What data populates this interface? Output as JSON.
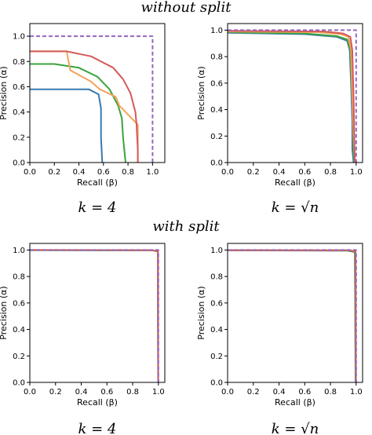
{
  "sections": [
    {
      "title": "without split"
    },
    {
      "title": "with split"
    }
  ],
  "colors": {
    "blue": "#3a78b0",
    "green": "#3ba33b",
    "orange": "#f3a35a",
    "red": "#d45a5a",
    "purple_dashed": "#9467bd"
  },
  "chart_data": [
    {
      "type": "line",
      "caption": "k = 4",
      "xlabel": "Recall (β)",
      "ylabel": "Precision (α)",
      "xlim": [
        0,
        1.1
      ],
      "ylim": [
        0,
        1.1
      ],
      "xticks": [
        "0.0",
        "0.2",
        "0.4",
        "0.6",
        "0.8",
        "1.0"
      ],
      "yticks": [
        "0.0",
        "0.2",
        "0.4",
        "0.6",
        "0.8",
        "1.0"
      ],
      "series": [
        {
          "color": "#3a78b0",
          "dashed": false,
          "x": [
            0,
            0.48,
            0.56,
            0.58,
            0.58,
            0.59
          ],
          "y": [
            0.58,
            0.58,
            0.54,
            0.43,
            0.2,
            0
          ]
        },
        {
          "color": "#3ba33b",
          "dashed": false,
          "x": [
            0,
            0.2,
            0.4,
            0.55,
            0.65,
            0.72,
            0.75,
            0.76,
            0.77,
            0.78
          ],
          "y": [
            0.78,
            0.78,
            0.75,
            0.68,
            0.58,
            0.45,
            0.35,
            0.2,
            0.1,
            0
          ]
        },
        {
          "color": "#f3a35a",
          "dashed": false,
          "x": [
            0,
            0.3,
            0.33,
            0.5,
            0.57,
            0.7,
            0.73,
            0.88,
            0.88
          ],
          "y": [
            0.88,
            0.88,
            0.73,
            0.64,
            0.58,
            0.52,
            0.45,
            0.3,
            0
          ]
        },
        {
          "color": "#d45a5a",
          "dashed": false,
          "x": [
            0,
            0.3,
            0.5,
            0.68,
            0.76,
            0.82,
            0.86,
            0.87,
            0.88,
            0.88
          ],
          "y": [
            0.88,
            0.88,
            0.84,
            0.75,
            0.66,
            0.55,
            0.4,
            0.3,
            0.1,
            0
          ]
        },
        {
          "color": "#9467bd",
          "dashed": true,
          "x": [
            0,
            1,
            1
          ],
          "y": [
            1,
            1,
            0
          ]
        }
      ]
    },
    {
      "type": "line",
      "caption": "k = √n",
      "xlabel": "Recall (β)",
      "ylabel": "Precision (α)",
      "xlim": [
        0,
        1.05
      ],
      "ylim": [
        0,
        1.05
      ],
      "xticks": [
        "0.0",
        "0.2",
        "0.4",
        "0.6",
        "0.8",
        "1.0"
      ],
      "yticks": [
        "0.0",
        "0.2",
        "0.4",
        "0.6",
        "0.8",
        "1.0"
      ],
      "series": [
        {
          "color": "#3a78b0",
          "dashed": false,
          "x": [
            0,
            0.6,
            0.85,
            0.93,
            0.95,
            0.96,
            0.97,
            0.97,
            0.98
          ],
          "y": [
            0.98,
            0.97,
            0.95,
            0.92,
            0.85,
            0.6,
            0.3,
            0.1,
            0
          ]
        },
        {
          "color": "#3ba33b",
          "dashed": false,
          "x": [
            0,
            0.6,
            0.85,
            0.93,
            0.955,
            0.965,
            0.975,
            0.98,
            0.985
          ],
          "y": [
            0.985,
            0.975,
            0.955,
            0.93,
            0.85,
            0.6,
            0.3,
            0.1,
            0
          ]
        },
        {
          "color": "#f3a35a",
          "dashed": false,
          "x": [
            0,
            0.7,
            0.88,
            0.94,
            0.96,
            0.97,
            0.98,
            0.99
          ],
          "y": [
            0.99,
            0.985,
            0.97,
            0.95,
            0.85,
            0.5,
            0.2,
            0
          ]
        },
        {
          "color": "#d45a5a",
          "dashed": false,
          "x": [
            0,
            0.75,
            0.9,
            0.955,
            0.97,
            0.98,
            0.985,
            0.99
          ],
          "y": [
            0.995,
            0.99,
            0.975,
            0.95,
            0.85,
            0.5,
            0.2,
            0
          ]
        },
        {
          "color": "#9467bd",
          "dashed": true,
          "x": [
            0,
            1,
            1
          ],
          "y": [
            1,
            1,
            0
          ]
        }
      ]
    },
    {
      "type": "line",
      "caption": "k = 4",
      "xlabel": "Recall (β)",
      "ylabel": "Precision (α)",
      "xlim": [
        0,
        1.05
      ],
      "ylim": [
        0,
        1.05
      ],
      "xticks": [
        "0.0",
        "0.2",
        "0.4",
        "0.6",
        "0.8",
        "1.0"
      ],
      "yticks": [
        "0.0",
        "0.2",
        "0.4",
        "0.6",
        "0.8",
        "1.0"
      ],
      "series": [
        {
          "color": "#3a78b0",
          "dashed": false,
          "x": [
            0,
            0.95,
            0.995,
            0.998
          ],
          "y": [
            0.999,
            0.998,
            0.99,
            0
          ]
        },
        {
          "color": "#3ba33b",
          "dashed": false,
          "x": [
            0,
            0.95,
            0.995,
            0.998
          ],
          "y": [
            0.999,
            0.998,
            0.99,
            0
          ]
        },
        {
          "color": "#f3a35a",
          "dashed": false,
          "x": [
            0,
            0.95,
            0.996,
            0.999
          ],
          "y": [
            1,
            0.999,
            0.99,
            0
          ]
        },
        {
          "color": "#d45a5a",
          "dashed": false,
          "x": [
            0,
            0.95,
            0.996,
            0.999
          ],
          "y": [
            1,
            0.999,
            0.99,
            0
          ]
        },
        {
          "color": "#9467bd",
          "dashed": true,
          "x": [
            0,
            1,
            1
          ],
          "y": [
            1,
            1,
            0
          ]
        }
      ]
    },
    {
      "type": "line",
      "caption": "k = √n",
      "xlabel": "Recall (β)",
      "ylabel": "Precision (α)",
      "xlim": [
        0,
        1.05
      ],
      "ylim": [
        0,
        1.05
      ],
      "xticks": [
        "0.0",
        "0.2",
        "0.4",
        "0.6",
        "0.8",
        "1.0"
      ],
      "yticks": [
        "0.0",
        "0.2",
        "0.4",
        "0.6",
        "0.8",
        "1.0"
      ],
      "series": [
        {
          "color": "#3a78b0",
          "dashed": false,
          "x": [
            0,
            0.93,
            0.99,
            0.995
          ],
          "y": [
            0.997,
            0.995,
            0.985,
            0
          ]
        },
        {
          "color": "#3ba33b",
          "dashed": false,
          "x": [
            0,
            0.93,
            0.99,
            0.996
          ],
          "y": [
            0.998,
            0.996,
            0.986,
            0
          ]
        },
        {
          "color": "#f3a35a",
          "dashed": false,
          "x": [
            0,
            0.95,
            0.995,
            0.998
          ],
          "y": [
            0.999,
            0.998,
            0.99,
            0
          ]
        },
        {
          "color": "#d45a5a",
          "dashed": false,
          "x": [
            0,
            0.95,
            0.995,
            0.998
          ],
          "y": [
            0.999,
            0.998,
            0.99,
            0
          ]
        },
        {
          "color": "#9467bd",
          "dashed": true,
          "x": [
            0,
            1,
            1
          ],
          "y": [
            1,
            1,
            0
          ]
        }
      ]
    }
  ]
}
